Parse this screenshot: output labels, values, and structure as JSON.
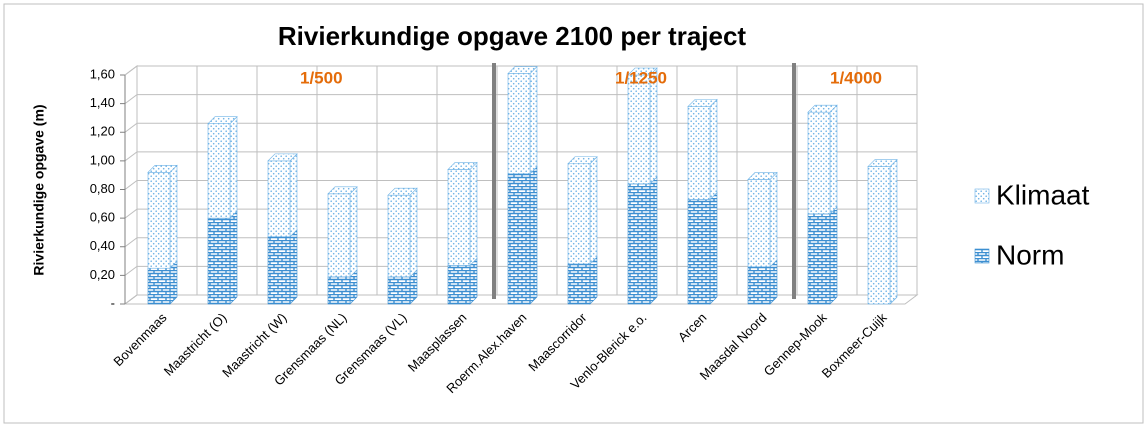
{
  "chart_data": {
    "type": "bar",
    "stacked": true,
    "title": "Rivierkundige opgave 2100 per traject",
    "ylabel": "Rivierkundige opgave (m)",
    "categories": [
      "Bovenmaas",
      "Maastricht (O)",
      "Maastricht (W)",
      "Grensmaas (NL)",
      "Grensmaas (VL)",
      "Maasplassen",
      "Roerm.Alex.haven",
      "Maascorridor",
      "Venlo-Blerick e.o.",
      "Arcen",
      "Maasdal Noord",
      "Gennep-Mook",
      "Boxmeer-Cuijk"
    ],
    "series": [
      {
        "name": "Norm",
        "color": "#3d8fd1",
        "values": [
          0.25,
          0.6,
          0.47,
          0.19,
          0.19,
          0.27,
          0.91,
          0.28,
          0.84,
          0.73,
          0.26,
          0.63,
          0
        ]
      },
      {
        "name": "Klimaat",
        "color": "#6fb3e6",
        "values": [
          0.67,
          0.66,
          0.53,
          0.58,
          0.57,
          0.67,
          0.7,
          0.7,
          0.76,
          0.65,
          0.61,
          0.71,
          0.96
        ]
      }
    ],
    "annotations": [
      "1/500",
      "1/1250",
      "1/4000"
    ],
    "ylim": [
      0,
      1.6
    ],
    "yticks": [
      {
        "value": 0,
        "label": "-"
      },
      {
        "value": 0.2,
        "label": "0,20"
      },
      {
        "value": 0.4,
        "label": "0,40"
      },
      {
        "value": 0.6,
        "label": "0,60"
      },
      {
        "value": 0.8,
        "label": "0,80"
      },
      {
        "value": 1.0,
        "label": "1,00"
      },
      {
        "value": 1.2,
        "label": "1,20"
      },
      {
        "value": 1.4,
        "label": "1,40"
      },
      {
        "value": 1.6,
        "label": "1,60"
      }
    ],
    "grid": true,
    "legend": "right"
  }
}
